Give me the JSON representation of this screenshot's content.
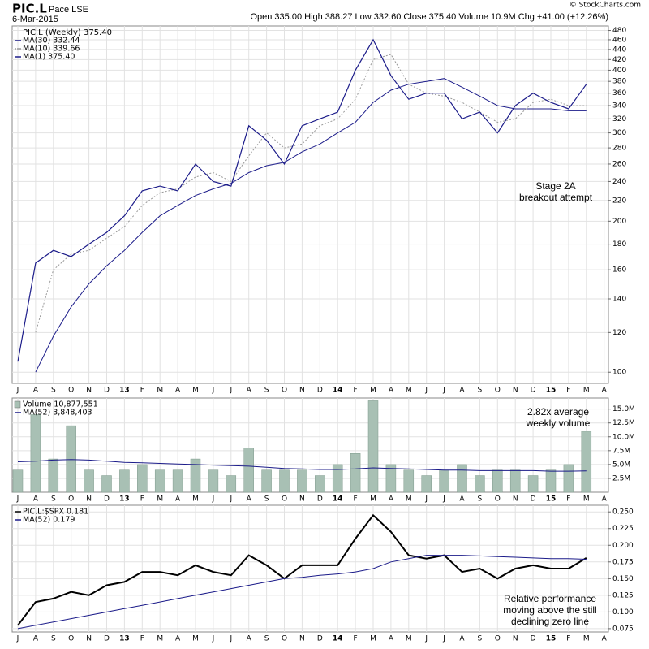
{
  "header": {
    "symbol": "PIC.L",
    "exchange": "Pace LSE",
    "date": "6-Mar-2015",
    "quote": "Open 335.00 High 388.27 Low 332.60 Close 375.40 Volume 10.9M Chg +41.00 (+12.26%)",
    "copyright": "© StockCharts.com"
  },
  "chart_data": [
    {
      "type": "line",
      "legend_title": "PIC.L (Weekly) 375.40",
      "log_scale": true,
      "grid": true,
      "categories": [
        "J",
        "A",
        "S",
        "O",
        "N",
        "D",
        "13",
        "F",
        "M",
        "A",
        "M",
        "J",
        "J",
        "A",
        "S",
        "O",
        "N",
        "D",
        "14",
        "F",
        "M",
        "A",
        "M",
        "J",
        "J",
        "A",
        "S",
        "O",
        "N",
        "D",
        "15",
        "F",
        "M",
        "A"
      ],
      "ylim": [
        95,
        490
      ],
      "yticks": [
        100,
        120,
        140,
        160,
        180,
        200,
        220,
        240,
        260,
        280,
        300,
        320,
        340,
        360,
        380,
        400,
        420,
        440,
        460,
        480
      ],
      "annotations": [
        "Stage 2A",
        "breakout attempt"
      ],
      "series": [
        {
          "name": "MA(30) 332.44",
          "color": "#1c1c8a",
          "style": "solid",
          "values": [
            null,
            100,
            118,
            135,
            150,
            163,
            175,
            190,
            205,
            215,
            225,
            232,
            238,
            250,
            258,
            262,
            275,
            285,
            300,
            315,
            345,
            365,
            375,
            380,
            385,
            370,
            355,
            340,
            335,
            335,
            335,
            332,
            332,
            null
          ]
        },
        {
          "name": "MA(10) 339.66",
          "color": "#999999",
          "style": "dotted",
          "values": [
            null,
            120,
            160,
            172,
            175,
            185,
            195,
            215,
            228,
            232,
            245,
            250,
            240,
            270,
            300,
            280,
            285,
            310,
            320,
            350,
            420,
            430,
            375,
            360,
            355,
            345,
            330,
            315,
            320,
            345,
            350,
            340,
            340,
            null
          ]
        },
        {
          "name": "MA(1) 375.40",
          "color": "#1c1c8a",
          "style": "solid",
          "width": 1.2,
          "values": [
            105,
            165,
            175,
            170,
            180,
            190,
            205,
            230,
            235,
            230,
            260,
            240,
            235,
            310,
            290,
            260,
            310,
            320,
            330,
            400,
            460,
            390,
            350,
            360,
            360,
            320,
            330,
            300,
            340,
            360,
            345,
            335,
            375,
            null
          ]
        }
      ]
    },
    {
      "type": "bar",
      "grid": true,
      "categories": [
        "J",
        "A",
        "S",
        "O",
        "N",
        "D",
        "13",
        "F",
        "M",
        "A",
        "M",
        "J",
        "J",
        "A",
        "S",
        "O",
        "N",
        "D",
        "14",
        "F",
        "M",
        "A",
        "M",
        "J",
        "J",
        "A",
        "S",
        "O",
        "N",
        "D",
        "15",
        "F",
        "M",
        "A"
      ],
      "ylim": [
        0,
        17
      ],
      "yticks": [
        {
          "value": 2.5,
          "label": "2.5M"
        },
        {
          "value": 5,
          "label": "5.0M"
        },
        {
          "value": 7.5,
          "label": "7.5M"
        },
        {
          "value": 10,
          "label": "10.0M"
        },
        {
          "value": 12.5,
          "label": "12.5M"
        },
        {
          "value": 15,
          "label": "15.0M"
        }
      ],
      "annotations": [
        "2.82x average",
        "weekly volume"
      ],
      "series": [
        {
          "name": "Volume 10,877,551",
          "color": "#a8c0b4",
          "type": "bar",
          "values": [
            4,
            14,
            6,
            12,
            4,
            3,
            4,
            5,
            4,
            4,
            6,
            4,
            3,
            8,
            4,
            4,
            4,
            3,
            5,
            7,
            16.5,
            5,
            4,
            3,
            4,
            5,
            3,
            4,
            4,
            3,
            4,
            5,
            11,
            null
          ]
        },
        {
          "name": "MA(52) 3,848,403",
          "color": "#1c1c8a",
          "type": "line",
          "values": [
            5.5,
            5.6,
            5.8,
            5.9,
            5.8,
            5.6,
            5.4,
            5.3,
            5.2,
            5.1,
            5.0,
            4.9,
            4.8,
            4.7,
            4.5,
            4.3,
            4.2,
            4.1,
            4.1,
            4.2,
            4.4,
            4.3,
            4.2,
            4.1,
            4.0,
            4.0,
            3.9,
            3.9,
            3.9,
            3.9,
            3.8,
            3.8,
            3.85,
            null
          ]
        }
      ]
    },
    {
      "type": "line",
      "grid": true,
      "categories": [
        "J",
        "A",
        "S",
        "O",
        "N",
        "D",
        "13",
        "F",
        "M",
        "A",
        "M",
        "J",
        "J",
        "A",
        "S",
        "O",
        "N",
        "D",
        "14",
        "F",
        "M",
        "A",
        "M",
        "J",
        "J",
        "A",
        "S",
        "O",
        "N",
        "D",
        "15",
        "F",
        "M",
        "A"
      ],
      "ylim": [
        0.07,
        0.26
      ],
      "yticks": [
        0.075,
        {
          "value": 0.1,
          "label": "0.100"
        },
        0.125,
        {
          "value": 0.15,
          "label": "0.150"
        },
        0.175,
        {
          "value": 0.2,
          "label": "0.200"
        },
        0.225,
        {
          "value": 0.25,
          "label": "0.250"
        }
      ],
      "annotations": [
        "Relative performance",
        "moving above the still",
        "declining zero line"
      ],
      "series": [
        {
          "name": "PIC.L:$SPX 0.181",
          "color": "#000000",
          "style": "solid",
          "width": 2,
          "values": [
            0.08,
            0.115,
            0.12,
            0.13,
            0.125,
            0.14,
            0.145,
            0.16,
            0.16,
            0.155,
            0.17,
            0.16,
            0.155,
            0.185,
            0.17,
            0.15,
            0.17,
            0.17,
            0.17,
            0.21,
            0.245,
            0.22,
            0.185,
            0.18,
            0.185,
            0.16,
            0.165,
            0.15,
            0.165,
            0.17,
            0.165,
            0.165,
            0.181,
            null
          ]
        },
        {
          "name": "MA(52) 0.179",
          "color": "#1c1c8a",
          "style": "solid",
          "values": [
            0.075,
            0.08,
            0.085,
            0.09,
            0.095,
            0.1,
            0.105,
            0.11,
            0.115,
            0.12,
            0.125,
            0.13,
            0.135,
            0.14,
            0.145,
            0.15,
            0.152,
            0.155,
            0.157,
            0.16,
            0.165,
            0.175,
            0.18,
            0.185,
            0.185,
            0.185,
            0.184,
            0.183,
            0.182,
            0.181,
            0.18,
            0.18,
            0.179,
            null
          ]
        }
      ]
    }
  ]
}
